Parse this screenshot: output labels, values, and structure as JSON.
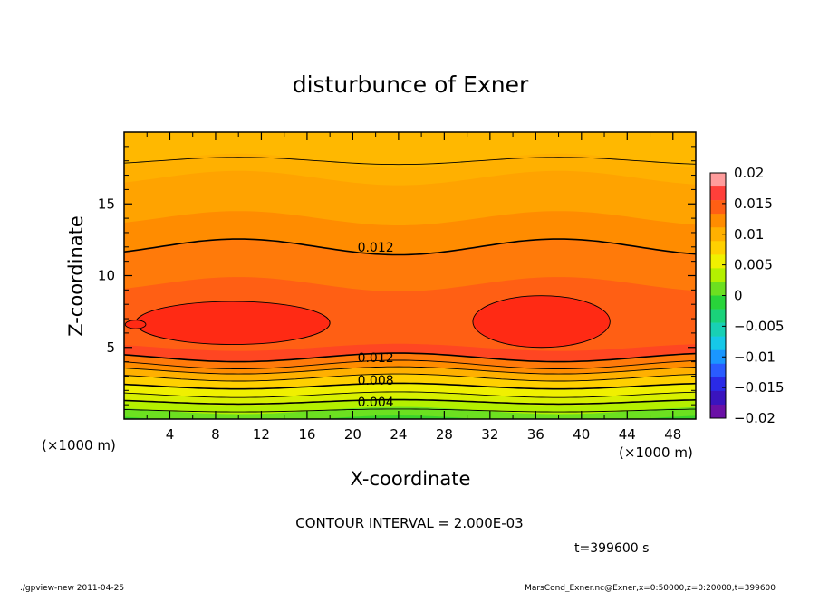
{
  "chart_data": {
    "type": "contour",
    "title": "disturbunce of Exner",
    "xlabel": "X-coordinate",
    "ylabel": "Z-coordinate",
    "x_unit": "(×1000 m)",
    "y_unit": "(×1000 m)",
    "xlim": [
      0,
      50
    ],
    "ylim": [
      0,
      20
    ],
    "x_ticks": [
      4,
      8,
      12,
      16,
      20,
      24,
      28,
      32,
      36,
      40,
      44,
      48
    ],
    "y_ticks": [
      5,
      10,
      15
    ],
    "contour_interval_text": "CONTOUR INTERVAL = 2.000E-03",
    "time_text": "t=399600 s",
    "contour_labels": [
      {
        "text": "0.012",
        "x": 22.0,
        "y": 12.0
      },
      {
        "text": "0.012",
        "x": 22.0,
        "y": 4.3
      },
      {
        "text": "0.008",
        "x": 22.0,
        "y": 2.7
      },
      {
        "text": "0.004",
        "x": 22.0,
        "y": 1.2
      }
    ],
    "colorbar": {
      "ticks": [
        "0.02",
        "0.015",
        "0.01",
        "0.005",
        "0",
        "−0.005",
        "−0.01",
        "−0.015",
        "−0.02"
      ],
      "levels": [
        0.02,
        0.015,
        0.01,
        0.005,
        0,
        -0.005,
        -0.01,
        -0.015,
        -0.02
      ],
      "colors": [
        "#ff9c9c",
        "#ff3f3a",
        "#ff5f14",
        "#ff8c00",
        "#ffb000",
        "#ffd000",
        "#f0f000",
        "#b4f000",
        "#6ce020",
        "#28d43a",
        "#1ad27a",
        "#18d0b4",
        "#16c8e8",
        "#1a96ff",
        "#2a5cff",
        "#2a2ae6",
        "#3a14be",
        "#6a10a6"
      ]
    },
    "color_bands": [
      {
        "z": 18.0,
        "color": "#ffb000"
      },
      {
        "z": 16.8,
        "color": "#ffa300"
      },
      {
        "z": 14.0,
        "color": "#ff8c00"
      },
      {
        "z": 12.0,
        "color": "#ff7a0a"
      },
      {
        "z": 9.4,
        "color": "#ff5f14"
      },
      {
        "z": 5.0,
        "color": "#ff4622"
      },
      {
        "z": 4.3,
        "color": "#ff7a0a"
      },
      {
        "z": 3.8,
        "color": "#ff8c00"
      },
      {
        "z": 3.4,
        "color": "#ffb000"
      },
      {
        "z": 2.9,
        "color": "#ffd000"
      },
      {
        "z": 2.3,
        "color": "#f0f000"
      },
      {
        "z": 1.7,
        "color": "#d8f000"
      },
      {
        "z": 1.2,
        "color": "#b4f000"
      },
      {
        "z": 0.6,
        "color": "#6ce020"
      },
      {
        "z": 0.0,
        "color": "#3ad42a"
      }
    ],
    "contour_lines": [
      {
        "z": 18.0,
        "wave": 0.25,
        "level": ""
      },
      {
        "z": 12.0,
        "wave": 0.55,
        "level": "0.012"
      },
      {
        "z": 4.3,
        "wave": -0.3,
        "level": "0.012"
      },
      {
        "z": 3.8,
        "wave": -0.3,
        "level": ""
      },
      {
        "z": 3.4,
        "wave": -0.25,
        "level": ""
      },
      {
        "z": 2.9,
        "wave": -0.25,
        "level": ""
      },
      {
        "z": 2.3,
        "wave": -0.2,
        "level": "0.008"
      },
      {
        "z": 1.7,
        "wave": -0.2,
        "level": ""
      },
      {
        "z": 1.2,
        "wave": -0.15,
        "level": "0.004"
      },
      {
        "z": 0.6,
        "wave": -0.1,
        "level": ""
      }
    ],
    "closed_regions": [
      {
        "cx": 9.5,
        "cz": 6.7,
        "rx": 8.5,
        "rz": 1.5,
        "color": "#ff2a14"
      },
      {
        "cx": 36.5,
        "cz": 6.8,
        "rx": 6.0,
        "rz": 1.8,
        "color": "#ff2a14"
      },
      {
        "cx": 1.0,
        "cz": 6.6,
        "rx": 0.9,
        "rz": 0.3,
        "color": "#ff2a14"
      }
    ]
  },
  "footer": {
    "left": "./gpview-new  2011-04-25",
    "right": "MarsCond_Exner.nc@Exner,x=0:50000,z=0:20000,t=399600"
  }
}
